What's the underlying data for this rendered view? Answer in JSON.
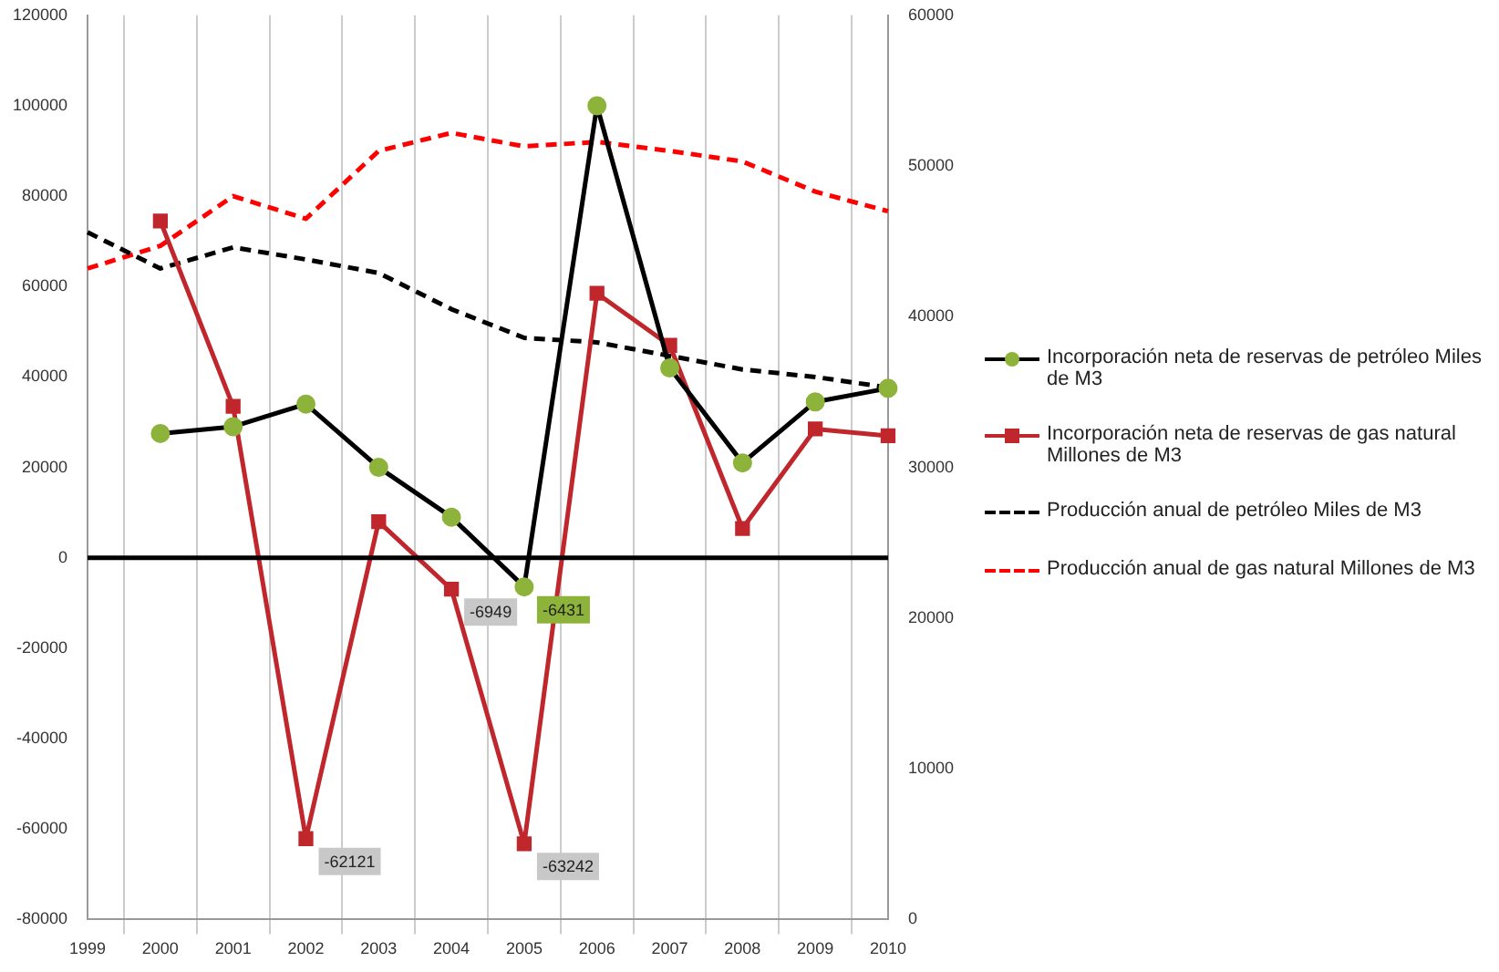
{
  "chart_data": {
    "type": "line",
    "categories": [
      "1999",
      "2000",
      "2001",
      "2002",
      "2003",
      "2004",
      "2005",
      "2006",
      "2007",
      "2008",
      "2009",
      "2010"
    ],
    "series": [
      {
        "name": "Incorporación neta de reservas de petróleo Miles de M3",
        "color": "#000000",
        "colors": [
          null,
          "#8db33a",
          "#8db33a",
          "#8db33a",
          "#8db33a",
          "#8db33a",
          "#8db33a",
          "#8db33a",
          "#8db33a",
          "#8db33a",
          "#8db33a",
          "#8db33a"
        ],
        "marker": "circle",
        "line_style": "solid",
        "values": [
          null,
          27500,
          29000,
          34000,
          20000,
          9000,
          -6431,
          100000,
          42000,
          21000,
          34500,
          37500
        ],
        "value_labels": [
          null,
          null,
          null,
          null,
          null,
          null,
          "-6431",
          null,
          null,
          null,
          null,
          null
        ]
      },
      {
        "name": "Incorporación neta de reservas de gas natural Millones de M3",
        "color": "#c0272d",
        "marker": "square",
        "line_style": "solid",
        "values": [
          null,
          74500,
          33500,
          -62121,
          8000,
          -6949,
          -63242,
          58500,
          47000,
          6500,
          28500,
          27000
        ],
        "value_labels": [
          null,
          null,
          null,
          "-62121",
          null,
          "-6949",
          "-63242",
          null,
          null,
          null,
          null,
          null
        ]
      },
      {
        "name": "Producción anual de petróleo Miles de M3",
        "color": "#000000",
        "marker": "none",
        "line_style": "dashed",
        "axis": "y2",
        "values": [
          45600,
          43200,
          44600,
          43800,
          42900,
          40500,
          38600,
          38300,
          37400,
          36500,
          36000,
          35300
        ]
      },
      {
        "name": "Producción anual de gas natural Millones de M3",
        "color": "#ff0000",
        "marker": "none",
        "line_style": "dashed",
        "axis": "y2",
        "values": [
          43200,
          44700,
          48000,
          46500,
          51000,
          52200,
          51300,
          51600,
          51000,
          50300,
          48300,
          47000
        ]
      }
    ],
    "ylim": [
      -80000,
      120000
    ],
    "yticks": [
      -80000,
      -60000,
      -40000,
      -20000,
      0,
      20000,
      40000,
      60000,
      80000,
      100000,
      120000
    ],
    "y2lim": [
      0,
      60000
    ],
    "y2ticks": [
      0,
      10000,
      20000,
      30000,
      40000,
      50000,
      60000
    ],
    "ref_lines": [
      {
        "axis": "y",
        "value": 0,
        "color": "#000000"
      }
    ],
    "grid": "x",
    "legend": "right"
  }
}
